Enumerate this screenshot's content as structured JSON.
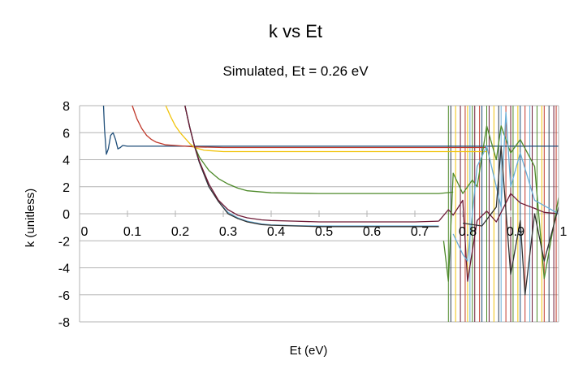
{
  "chart_data": {
    "type": "line",
    "title": "k vs Et",
    "subtitle": "Simulated, Et = 0.26 eV",
    "xlabel": "Et (eV)",
    "ylabel": "k (unitless)",
    "xlim": [
      0,
      1
    ],
    "ylim": [
      -8,
      8
    ],
    "x_ticks": [
      "0",
      "0.1",
      "0.2",
      "0.3",
      "0.4",
      "0.5",
      "0.6",
      "0.7",
      "0.8",
      "0.9",
      "1"
    ],
    "y_ticks": [
      "8",
      "6",
      "4",
      "2",
      "0",
      "-2",
      "-4",
      "-6",
      "-8"
    ],
    "grid": "horizontal",
    "legend": "none",
    "series": [
      {
        "color": "#1f4e79",
        "x": [
          0.05,
          0.052,
          0.056,
          0.06,
          0.065,
          0.07,
          0.075,
          0.08,
          0.085,
          0.09,
          0.1,
          0.12,
          0.2,
          0.4,
          0.6,
          0.8,
          1.0
        ],
        "y": [
          8,
          6.3,
          4.4,
          4.8,
          5.8,
          6.0,
          5.5,
          4.8,
          4.9,
          5.05,
          5.0,
          5.0,
          5.0,
          5.0,
          5.0,
          5.0,
          5.0
        ]
      },
      {
        "color": "#c0392b",
        "x": [
          0.11,
          0.12,
          0.13,
          0.14,
          0.15,
          0.16,
          0.18,
          0.2,
          0.22,
          0.24,
          0.3,
          0.4,
          0.5,
          0.6,
          0.7,
          0.8,
          0.85
        ],
        "y": [
          8,
          7.0,
          6.3,
          5.8,
          5.5,
          5.3,
          5.1,
          5.05,
          5.0,
          4.95,
          4.9,
          4.9,
          4.9,
          4.9,
          4.9,
          4.9,
          4.9
        ]
      },
      {
        "color": "#f1c40f",
        "x": [
          0.18,
          0.19,
          0.2,
          0.21,
          0.22,
          0.23,
          0.24,
          0.26,
          0.3,
          0.4,
          0.5,
          0.6,
          0.7,
          0.75,
          0.8,
          0.85
        ],
        "y": [
          8,
          7.2,
          6.5,
          6.0,
          5.6,
          5.2,
          4.9,
          4.7,
          4.6,
          4.6,
          4.6,
          4.6,
          4.6,
          4.6,
          4.6,
          4.6
        ]
      },
      {
        "color": "#4e8a2a",
        "x": [
          0.22,
          0.23,
          0.24,
          0.25,
          0.27,
          0.29,
          0.31,
          0.33,
          0.35,
          0.4,
          0.5,
          0.6,
          0.7,
          0.75,
          0.78
        ],
        "y": [
          8,
          6.4,
          5.0,
          4.2,
          3.2,
          2.6,
          2.2,
          1.9,
          1.7,
          1.55,
          1.5,
          1.5,
          1.5,
          1.5,
          1.6
        ]
      },
      {
        "color": "#6aaed6",
        "x": [
          0.22,
          0.23,
          0.24,
          0.25,
          0.27,
          0.29,
          0.31,
          0.33,
          0.35,
          0.38,
          0.4,
          0.45,
          0.5,
          0.6,
          0.7,
          0.75
        ],
        "y": [
          8,
          6.4,
          5.0,
          3.8,
          2.0,
          0.9,
          0.1,
          -0.3,
          -0.55,
          -0.75,
          -0.82,
          -0.88,
          -0.9,
          -0.9,
          -0.9,
          -0.9
        ]
      },
      {
        "color": "#333333",
        "x": [
          0.22,
          0.23,
          0.24,
          0.25,
          0.27,
          0.29,
          0.31,
          0.33,
          0.35,
          0.38,
          0.4,
          0.45,
          0.5,
          0.6,
          0.7,
          0.75
        ],
        "y": [
          8,
          6.4,
          5.0,
          3.8,
          2.0,
          0.9,
          0.0,
          -0.35,
          -0.6,
          -0.8,
          -0.85,
          -0.9,
          -0.95,
          -0.95,
          -0.95,
          -0.95
        ]
      },
      {
        "color": "#6d1a36",
        "x": [
          0.22,
          0.23,
          0.24,
          0.25,
          0.27,
          0.29,
          0.31,
          0.33,
          0.35,
          0.38,
          0.4,
          0.45,
          0.5,
          0.6,
          0.7,
          0.75
        ],
        "y": [
          8,
          6.4,
          5.0,
          3.9,
          2.2,
          1.0,
          0.3,
          -0.1,
          -0.3,
          -0.45,
          -0.5,
          -0.55,
          -0.6,
          -0.6,
          -0.6,
          -0.55
        ]
      },
      {
        "color": "#6d1a36",
        "x": [
          0.75,
          0.77,
          0.78,
          0.8,
          0.81,
          0.83,
          0.85,
          0.87,
          0.9,
          0.92,
          0.95,
          0.97,
          1.0
        ],
        "y": [
          -0.55,
          0.3,
          -0.1,
          1.0,
          -5.0,
          -0.5,
          0.2,
          -0.6,
          1.5,
          0.8,
          0.4,
          0.1,
          0.0
        ]
      },
      {
        "color": "#4e8a2a",
        "x": [
          0.76,
          0.77,
          0.78,
          0.8,
          0.82,
          0.83,
          0.85,
          0.87,
          0.88,
          0.9,
          0.92,
          0.95,
          0.97,
          1.0
        ],
        "y": [
          -2.0,
          -5.0,
          3.0,
          1.5,
          2.5,
          2.0,
          6.5,
          4.0,
          6.5,
          4.5,
          5.5,
          3.5,
          -4.8,
          1.2
        ]
      },
      {
        "color": "#6aaed6",
        "x": [
          0.78,
          0.8,
          0.81,
          0.83,
          0.85,
          0.88,
          0.89,
          0.9,
          0.92,
          0.95,
          1.0
        ],
        "y": [
          -1.5,
          -3.0,
          -3.5,
          3.5,
          5.0,
          0.5,
          7.5,
          2.0,
          4.5,
          1.0,
          0.0
        ]
      },
      {
        "color": "#333333",
        "x": [
          0.8,
          0.84,
          0.87,
          0.88,
          0.9,
          0.92,
          0.93,
          0.95,
          0.97,
          1.0
        ],
        "y": [
          -0.7,
          -0.9,
          0.5,
          5.0,
          -4.5,
          -0.5,
          -6.0,
          0.0,
          -3.5,
          0.5
        ]
      }
    ],
    "vertical_traces": [
      {
        "color": "#4e8a2a",
        "x": 0.77
      },
      {
        "color": "#2c3e50",
        "x": 0.775
      },
      {
        "color": "#f1c40f",
        "x": 0.785
      },
      {
        "color": "#6d1a36",
        "x": 0.795
      },
      {
        "color": "#c0392b",
        "x": 0.805
      },
      {
        "color": "#f1c40f",
        "x": 0.81
      },
      {
        "color": "#6aaed6",
        "x": 0.815
      },
      {
        "color": "#4e8a2a",
        "x": 0.82
      },
      {
        "color": "#6d1a36",
        "x": 0.825
      },
      {
        "color": "#c0392b",
        "x": 0.835
      },
      {
        "color": "#1f4e79",
        "x": 0.84
      },
      {
        "color": "#4e8a2a",
        "x": 0.85
      },
      {
        "color": "#6d1a36",
        "x": 0.855
      },
      {
        "color": "#f1c40f",
        "x": 0.865
      },
      {
        "color": "#2c3e50",
        "x": 0.875
      },
      {
        "color": "#6aaed6",
        "x": 0.88
      },
      {
        "color": "#c0392b",
        "x": 0.89
      },
      {
        "color": "#6d1a36",
        "x": 0.9
      },
      {
        "color": "#4e8a2a",
        "x": 0.905
      },
      {
        "color": "#f1c40f",
        "x": 0.915
      },
      {
        "color": "#1f4e79",
        "x": 0.92
      },
      {
        "color": "#c0392b",
        "x": 0.93
      },
      {
        "color": "#6aaed6",
        "x": 0.94
      },
      {
        "color": "#6d1a36",
        "x": 0.945
      },
      {
        "color": "#4e8a2a",
        "x": 0.955
      },
      {
        "color": "#f1c40f",
        "x": 0.965
      },
      {
        "color": "#c0392b",
        "x": 0.97
      },
      {
        "color": "#2c3e50",
        "x": 0.98
      },
      {
        "color": "#6d1a36",
        "x": 0.99
      },
      {
        "color": "#c0392b",
        "x": 0.995
      }
    ]
  }
}
